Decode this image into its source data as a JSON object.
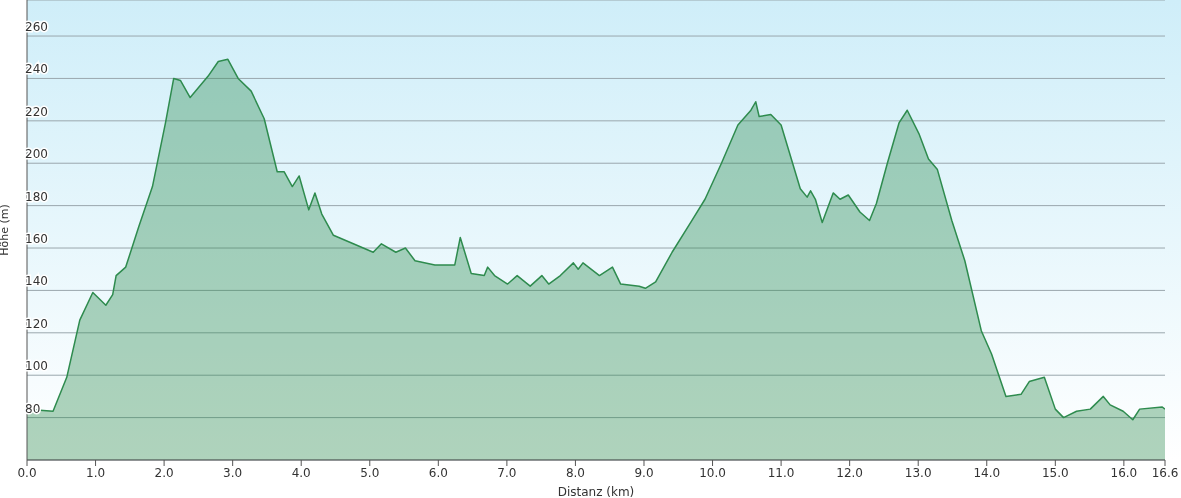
{
  "chart_data": {
    "type": "area",
    "xlabel": "Distanz  (km)",
    "ylabel": "Höhe (m)",
    "x": [
      0,
      0.38,
      0.58,
      0.77,
      0.96,
      1.15,
      1.25,
      1.3,
      1.44,
      1.63,
      1.83,
      2.02,
      2.14,
      2.24,
      2.38,
      2.64,
      2.79,
      2.93,
      3.08,
      3.27,
      3.46,
      3.65,
      3.75,
      3.87,
      3.97,
      4.11,
      4.2,
      4.3,
      4.47,
      4.76,
      5.05,
      5.17,
      5.38,
      5.52,
      5.66,
      5.95,
      6.24,
      6.32,
      6.48,
      6.67,
      6.72,
      6.82,
      7.01,
      7.15,
      7.34,
      7.51,
      7.61,
      7.78,
      7.97,
      8.04,
      8.11,
      8.35,
      8.54,
      8.66,
      8.93,
      9.02,
      9.17,
      9.41,
      9.7,
      9.89,
      10.13,
      10.37,
      10.56,
      10.63,
      10.68,
      10.85,
      11.0,
      11.28,
      11.38,
      11.43,
      11.5,
      11.6,
      11.76,
      11.86,
      11.98,
      12.15,
      12.29,
      12.39,
      12.55,
      12.72,
      12.84,
      13.01,
      13.15,
      13.28,
      13.49,
      13.68,
      13.92,
      14.07,
      14.28,
      14.5,
      14.62,
      14.84,
      15.0,
      15.12,
      15.31,
      15.51,
      15.7,
      15.8,
      15.99,
      16.13,
      16.23,
      16.56,
      16.6
    ],
    "series": [
      {
        "color": "#2e8b4e",
        "values": [
          84,
          83,
          99,
          126,
          139,
          133,
          138,
          147,
          151,
          170,
          189,
          219,
          240,
          239,
          231,
          241,
          248,
          249,
          240,
          234,
          221,
          196,
          196,
          189,
          194,
          178,
          186,
          176,
          166,
          162,
          158,
          162,
          158,
          160,
          154,
          152,
          152,
          165,
          148,
          147,
          151,
          147,
          143,
          147,
          142,
          147,
          143,
          147,
          153,
          150,
          153,
          147,
          151,
          143,
          142,
          141,
          144,
          158,
          173,
          183,
          200,
          218,
          225,
          229,
          222,
          223,
          218,
          188,
          184,
          187,
          183,
          172,
          186,
          183,
          185,
          177,
          173,
          181,
          200,
          219,
          225,
          214,
          202,
          197,
          173,
          154,
          121,
          110,
          90,
          91,
          97,
          99,
          84,
          80,
          83,
          84,
          90,
          86,
          83,
          79,
          84,
          85,
          84
        ]
      }
    ],
    "xlim": [
      0,
      16.6
    ],
    "xticks": [
      {
        "value": 0,
        "label": "0.0"
      },
      {
        "value": 1,
        "label": "1.0"
      },
      {
        "value": 2,
        "label": "2.0"
      },
      {
        "value": 3,
        "label": "3.0"
      },
      {
        "value": 4,
        "label": "4.0"
      },
      {
        "value": 5,
        "label": "5.0"
      },
      {
        "value": 6,
        "label": "6.0"
      },
      {
        "value": 7,
        "label": "7.0"
      },
      {
        "value": 8,
        "label": "8.0"
      },
      {
        "value": 9,
        "label": "9.0"
      },
      {
        "value": 10,
        "label": "10.0"
      },
      {
        "value": 11,
        "label": "11.0"
      },
      {
        "value": 12,
        "label": "12.0"
      },
      {
        "value": 13,
        "label": "13.0"
      },
      {
        "value": 14,
        "label": "14.0"
      },
      {
        "value": 15,
        "label": "15.0"
      },
      {
        "value": 16,
        "label": "16.0"
      },
      {
        "value": 16.6,
        "label": "16.6"
      }
    ],
    "ylim": [
      60,
      277
    ],
    "yticks": [
      80,
      100,
      120,
      140,
      160,
      180,
      200,
      220,
      240,
      260
    ],
    "grid": "y",
    "legend": false
  }
}
